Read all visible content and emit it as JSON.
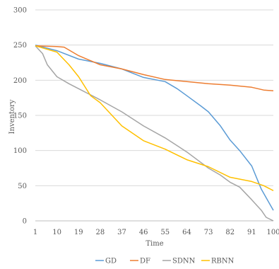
{
  "chart_data": {
    "type": "line",
    "title": "",
    "xlabel": "Time",
    "ylabel": "Inventory",
    "xlim": [
      1,
      100
    ],
    "ylim": [
      0,
      300
    ],
    "y_ticks": [
      "0",
      "50",
      "100",
      "150",
      "200",
      "250",
      "300"
    ],
    "x_ticks": [
      "1",
      "10",
      "19",
      "28",
      "37",
      "46",
      "55",
      "64",
      "73",
      "82",
      "91",
      "100"
    ],
    "x_tick_values": [
      1,
      10,
      19,
      28,
      37,
      46,
      55,
      64,
      73,
      82,
      91,
      100
    ],
    "grid": "horizontal",
    "legend_position": "bottom",
    "series": [
      {
        "name": "GD",
        "color": "#5B9BD5",
        "x": [
          1,
          10,
          19,
          28,
          37,
          46,
          55,
          60,
          64,
          70,
          73,
          78,
          82,
          86,
          91,
          95,
          100
        ],
        "y": [
          250,
          242,
          230,
          224,
          216,
          204,
          198,
          188,
          178,
          163,
          155,
          135,
          115,
          100,
          78,
          45,
          15
        ]
      },
      {
        "name": "DF",
        "color": "#ED7D31",
        "x": [
          1,
          10,
          13,
          19,
          28,
          37,
          46,
          55,
          64,
          73,
          82,
          91,
          96,
          100
        ],
        "y": [
          249,
          248,
          247,
          235,
          222,
          216,
          208,
          201,
          198,
          195,
          193,
          190,
          186,
          185
        ]
      },
      {
        "name": "SDNN",
        "color": "#A5A5A5",
        "x": [
          1,
          4,
          6,
          10,
          15,
          19,
          28,
          37,
          46,
          55,
          64,
          73,
          78,
          82,
          86,
          91,
          95,
          97,
          100
        ],
        "y": [
          249,
          238,
          222,
          205,
          195,
          188,
          172,
          155,
          135,
          118,
          98,
          75,
          65,
          55,
          48,
          30,
          15,
          5,
          0
        ]
      },
      {
        "name": "RBNN",
        "color": "#FFC000",
        "x": [
          1,
          10,
          15,
          19,
          24,
          28,
          37,
          46,
          55,
          64,
          73,
          82,
          91,
          96,
          100
        ],
        "y": [
          249,
          240,
          222,
          205,
          178,
          168,
          135,
          114,
          102,
          87,
          77,
          62,
          56,
          50,
          43
        ]
      }
    ]
  }
}
